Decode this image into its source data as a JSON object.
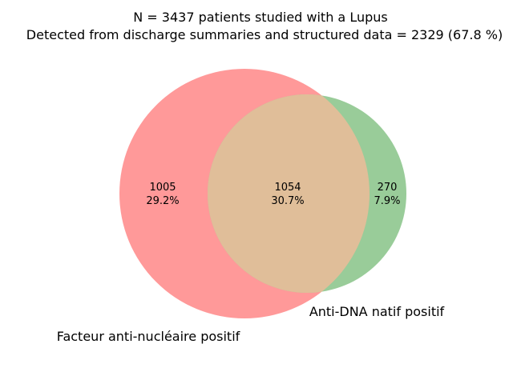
{
  "chart_data": {
    "type": "venn",
    "title_lines": [
      "N = 3437 patients studied with a Lupus",
      "Detected from discharge summaries and structured data = 2329 (67.8 %)"
    ],
    "sets": [
      {
        "name": "Facteur anti-nucléaire positif",
        "color": "#ff9999"
      },
      {
        "name": "Anti-DNA natif positif",
        "color": "#99cc99"
      }
    ],
    "overlap_color": "#e0be99",
    "regions": [
      {
        "id": "only_set_a",
        "count": "1005",
        "percent": "29.2%"
      },
      {
        "id": "intersection",
        "count": "1054",
        "percent": "30.7%"
      },
      {
        "id": "only_set_b",
        "count": "270",
        "percent": "7.9%"
      }
    ]
  }
}
